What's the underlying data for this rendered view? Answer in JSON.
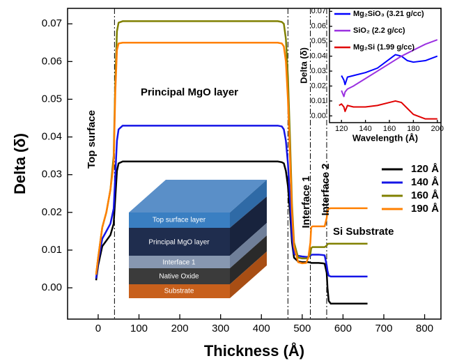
{
  "chart_data": [
    {
      "type": "line",
      "x_label": "Thickness (Å)",
      "y_label": "Delta (δ)",
      "xlim": [
        -75,
        840
      ],
      "ylim": [
        -0.0083,
        0.0741
      ],
      "xticks": [
        0,
        100,
        200,
        300,
        400,
        500,
        600,
        700,
        800
      ],
      "yticks": [
        {
          "value": 0,
          "label": "0.00"
        },
        {
          "value": 0.01,
          "label": "0.01"
        },
        {
          "value": 0.02,
          "label": "0.02"
        },
        {
          "value": 0.03,
          "label": "0.03"
        },
        {
          "value": 0.04,
          "label": "0.04"
        },
        {
          "value": 0.05,
          "label": "0.05"
        },
        {
          "value": 0.06,
          "label": "0.06"
        },
        {
          "value": 0.07,
          "label": "0.07"
        }
      ],
      "vlines": [
        40,
        465,
        520,
        560
      ],
      "annotations": [
        "Top surface",
        "Principal MgO layer",
        "Interface 1",
        "Interface 2",
        "Si Substrate"
      ],
      "legend": "right",
      "x": [
        -5,
        0,
        10,
        20,
        30,
        38,
        42,
        46,
        50,
        60,
        100,
        200,
        300,
        400,
        440,
        450,
        455,
        460,
        465,
        470,
        475,
        480,
        490,
        500,
        510,
        515,
        520,
        522,
        525,
        530,
        540,
        550,
        555,
        560,
        562,
        565,
        570,
        600,
        660
      ],
      "series": [
        {
          "name": "120 Å",
          "color": "#000000",
          "values": [
            0.002,
            0.006,
            0.011,
            0.0125,
            0.014,
            0.017,
            0.024,
            0.031,
            0.033,
            0.0335,
            0.0335,
            0.0335,
            0.0335,
            0.0335,
            0.0335,
            0.0333,
            0.033,
            0.031,
            0.027,
            0.02,
            0.012,
            0.008,
            0.007,
            0.0068,
            0.0068,
            0.0068,
            0.0067,
            0.0066,
            0.0066,
            0.0066,
            0.0066,
            0.0065,
            0.0064,
            0.004,
            0.0,
            -0.0035,
            -0.0042,
            -0.0042,
            -0.0042
          ]
        },
        {
          "name": "140 Å",
          "color": "#1414e6",
          "values": [
            0.0025,
            0.007,
            0.013,
            0.015,
            0.017,
            0.021,
            0.03,
            0.039,
            0.042,
            0.043,
            0.043,
            0.043,
            0.043,
            0.043,
            0.043,
            0.0428,
            0.042,
            0.039,
            0.033,
            0.024,
            0.014,
            0.009,
            0.0085,
            0.0083,
            0.0082,
            0.0082,
            0.0085,
            0.0087,
            0.0088,
            0.0088,
            0.0088,
            0.0087,
            0.0086,
            0.006,
            0.0045,
            0.0032,
            0.003,
            0.003,
            0.003
          ]
        },
        {
          "name": "160 Å",
          "color": "#808000",
          "values": [
            0.0035,
            0.008,
            0.016,
            0.02,
            0.026,
            0.035,
            0.055,
            0.068,
            0.0703,
            0.0707,
            0.0707,
            0.0707,
            0.0707,
            0.0707,
            0.0707,
            0.0705,
            0.07,
            0.066,
            0.056,
            0.04,
            0.022,
            0.012,
            0.008,
            0.0078,
            0.0078,
            0.008,
            0.009,
            0.0105,
            0.0108,
            0.0108,
            0.0108,
            0.0108,
            0.0108,
            0.0112,
            0.0116,
            0.0117,
            0.0117,
            0.0117,
            0.0117
          ]
        },
        {
          "name": "190 Å",
          "color": "#ff8000",
          "values": [
            0.0035,
            0.008,
            0.016,
            0.02,
            0.026,
            0.033,
            0.052,
            0.063,
            0.0648,
            0.065,
            0.065,
            0.065,
            0.065,
            0.065,
            0.065,
            0.0648,
            0.064,
            0.06,
            0.05,
            0.035,
            0.02,
            0.011,
            0.0068,
            0.0065,
            0.0066,
            0.008,
            0.012,
            0.016,
            0.0163,
            0.0163,
            0.0163,
            0.0163,
            0.0163,
            0.0185,
            0.0205,
            0.021,
            0.0211,
            0.0211,
            0.0211
          ]
        }
      ]
    },
    {
      "type": "line",
      "x_label": "Wavelength (Å)",
      "y_label": "Delta (δ)",
      "xlim": [
        110,
        203
      ],
      "ylim": [
        -0.0045,
        0.072
      ],
      "xticks": [
        120,
        140,
        160,
        180,
        200
      ],
      "yticks": [
        {
          "value": 0,
          "label": "0.00"
        },
        {
          "value": 0.01,
          "label": "0.01"
        },
        {
          "value": 0.02,
          "label": "0.02"
        },
        {
          "value": 0.03,
          "label": "0.03"
        },
        {
          "value": 0.04,
          "label": "0.04"
        },
        {
          "value": 0.05,
          "label": "0.05"
        },
        {
          "value": 0.06,
          "label": "0.06"
        },
        {
          "value": 0.07,
          "label": "0.07"
        }
      ],
      "legend": "upper left",
      "x": [
        118,
        120,
        122,
        123,
        125,
        130,
        140,
        150,
        160,
        165,
        170,
        175,
        180,
        190,
        200
      ],
      "series": [
        {
          "name": "Mg₂SiO₃ (3.21 g/cc)",
          "color": "#0000ff",
          "values": [
            null,
            0.027,
            0.024,
            0.021,
            0.026,
            0.027,
            0.029,
            0.032,
            0.038,
            0.041,
            0.04,
            0.037,
            0.036,
            0.037,
            0.04
          ]
        },
        {
          "name": "SiO₂ (2.2 g/cc)",
          "color": "#9a30e0",
          "values": [
            null,
            0.017,
            0.013,
            0.016,
            0.018,
            0.02,
            0.025,
            0.03,
            0.035,
            0.0375,
            0.04,
            0.042,
            0.044,
            0.048,
            0.051
          ]
        },
        {
          "name": "Mg₂Si (1.99 g/cc)",
          "color": "#e00000",
          "values": [
            0.007,
            0.008,
            0.006,
            0.003,
            0.007,
            0.006,
            0.006,
            0.007,
            0.009,
            0.01,
            0.009,
            0.005,
            0.001,
            -0.002,
            -0.002
          ]
        }
      ]
    }
  ],
  "diagram": {
    "layers": [
      "Top surface layer",
      "Principal MgO layer",
      "Interface 1",
      "Native Oxide",
      "Substrate"
    ]
  }
}
